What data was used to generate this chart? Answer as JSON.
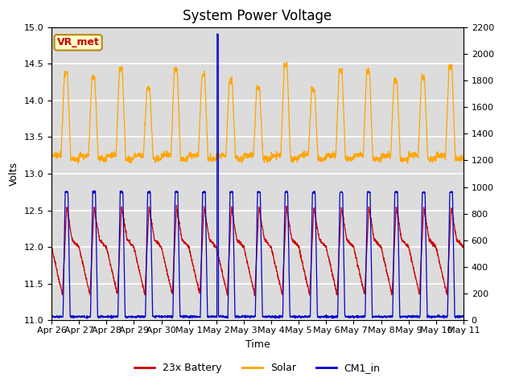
{
  "title": "System Power Voltage",
  "xlabel": "Time",
  "ylabel": "Volts",
  "xlim_days": 15,
  "ylim_left": [
    11.0,
    15.0
  ],
  "ylim_right": [
    0,
    2200
  ],
  "yticks_left": [
    11.0,
    11.5,
    12.0,
    12.5,
    13.0,
    13.5,
    14.0,
    14.5,
    15.0
  ],
  "yticks_right": [
    0,
    200,
    400,
    600,
    800,
    1000,
    1200,
    1400,
    1600,
    1800,
    2000,
    2200
  ],
  "xtick_labels": [
    "Apr 26",
    "Apr 27",
    "Apr 28",
    "Apr 29",
    "Apr 30",
    "May 1",
    "May 2",
    "May 3",
    "May 4",
    "May 5",
    "May 6",
    "May 7",
    "May 8",
    "May 9",
    "May 10",
    "May 11"
  ],
  "color_battery": "#cc0000",
  "color_solar": "#ffa500",
  "color_cm1": "#0000cc",
  "annotation_text": "VR_met",
  "annotation_color": "#cc0000",
  "annotation_bg": "#ffffcc",
  "annotation_border": "#b8860b",
  "background_color": "#dcdcdc",
  "title_fontsize": 12,
  "label_fontsize": 9,
  "tick_fontsize": 8,
  "legend_fontsize": 9,
  "spike_day": 6.05,
  "solar_base": 13.25,
  "solar_peak": 14.5,
  "bat_min": 11.35,
  "bat_max": 12.55,
  "cm1_min": 11.05,
  "cm1_max": 12.75
}
